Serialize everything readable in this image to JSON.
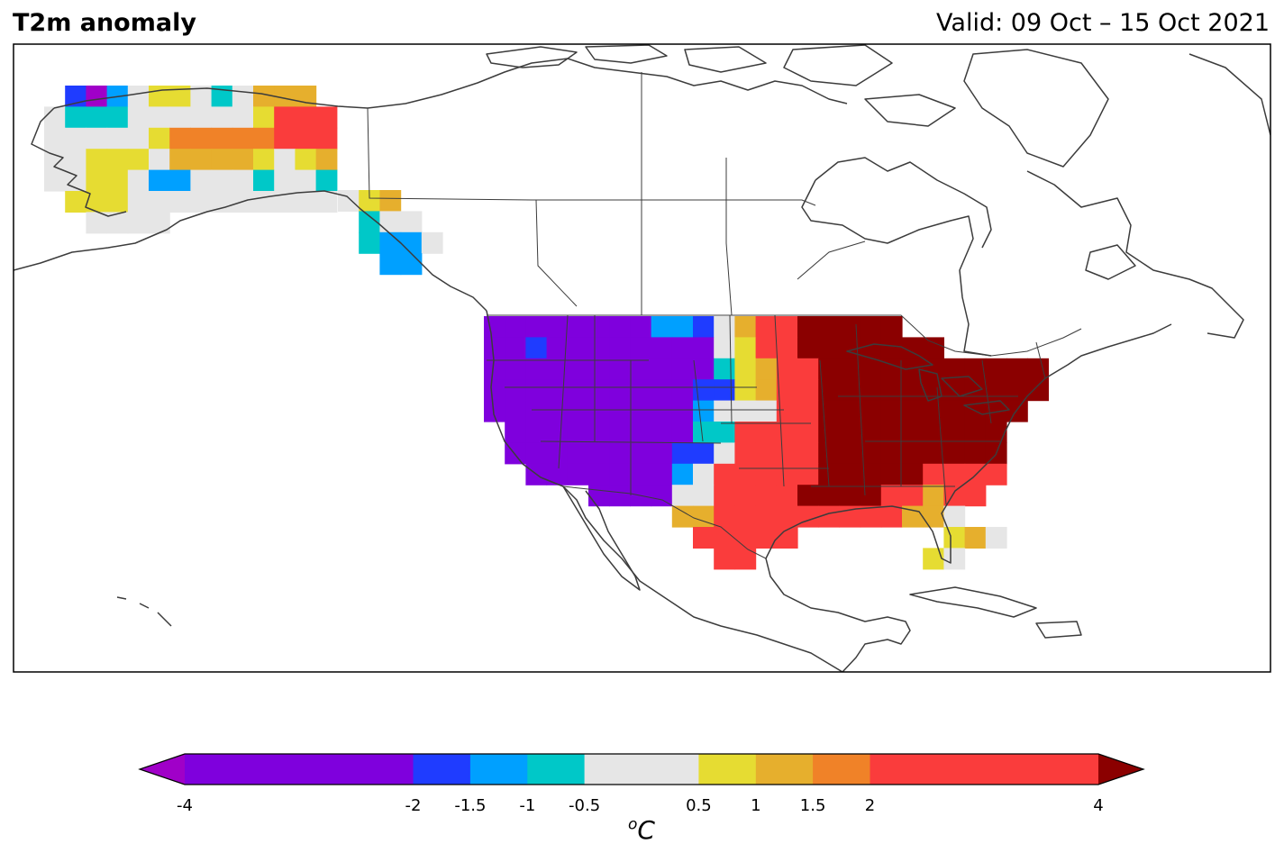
{
  "header": {
    "title": "T2m anomaly",
    "valid": "Valid: 09 Oct – 15 Oct 2021"
  },
  "legend": {
    "unit_symbol": "C",
    "unit_superscript": "o",
    "extend": "both",
    "boundaries": [
      -4,
      -2,
      -1.5,
      -1,
      -0.5,
      0.5,
      1,
      1.5,
      2,
      4
    ],
    "tick_labels": [
      "-4",
      "-2",
      "-1.5",
      "-1",
      "-0.5",
      "0.5",
      "1",
      "1.5",
      "2",
      "4"
    ],
    "colors": [
      "#7f00dd",
      "#1f3cff",
      "#00a0ff",
      "#00c8c8",
      "#e6e6e6",
      "#e6dc32",
      "#e6af2d",
      "#f08228",
      "#fa3c3c"
    ],
    "under_color": "#a000c8",
    "over_color": "#8b0000"
  },
  "map_data": {
    "field": "2 m temperature anomaly",
    "region": "North America",
    "regions": [
      {
        "area": "Pacific Northwest / Great Basin / Rockies",
        "category": "< -2 (purple)"
      },
      {
        "area": "Northern / Central Plains edge",
        "category": "-2 to 0.5 (blue to grey)"
      },
      {
        "area": "Great Plains / Texas",
        "category": "2 to 4 (red)"
      },
      {
        "area": "Midwest / Great Lakes / Northeast",
        "category": "> 4 (dark red)"
      },
      {
        "area": "Southeast",
        "category": "2 to 4 (red)"
      },
      {
        "area": "Florida",
        "category": "0.5 to 2 (yellow to orange)"
      },
      {
        "area": "Western Alaska",
        "category": "-0.5 to 1 (grey / yellow)"
      },
      {
        "area": "Northeastern Alaska",
        "category": "1.5 to 4 (orange / red)"
      },
      {
        "area": "Alaska Panhandle",
        "category": "-1.5 to 1.5 (mixed)"
      }
    ]
  }
}
